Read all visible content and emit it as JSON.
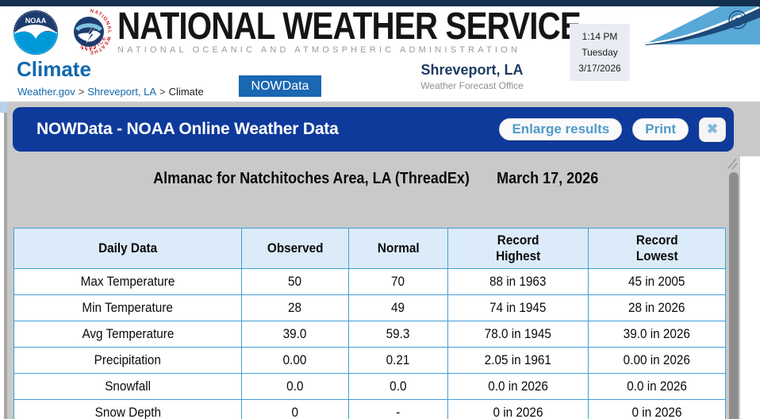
{
  "banner": {
    "title": "NATIONAL WEATHER SERVICE",
    "subtitle": "NATIONAL OCEANIC AND ATMOSPHERIC ADMINISTRATION"
  },
  "logos": {
    "noaa_text": "NOAA",
    "nws_ring_top": "NATIONAL WEATHER",
    "nws_ring_bottom": "SERVICE"
  },
  "clock": {
    "time": "1:14 PM",
    "day": "Tuesday",
    "date": "3/17/2026"
  },
  "page": {
    "section_title": "Climate",
    "breadcrumb": [
      {
        "label": "Weather.gov"
      },
      {
        "label": "Shreveport, LA"
      },
      {
        "label": "Climate"
      }
    ],
    "breadcrumb_separator": ">",
    "nowdata_button": "NOWData",
    "office": {
      "name": "Shreveport, LA",
      "type": "Weather Forecast Office"
    }
  },
  "dialog": {
    "title": "NOWData - NOAA Online Weather Data",
    "buttons": {
      "enlarge": "Enlarge results",
      "print": "Print",
      "close": "✖"
    },
    "almanac_title_line1": "Almanac for Natchitoches Area, LA (ThreadEx)",
    "almanac_title_line2": "March 17, 2026",
    "table": {
      "columns": [
        "Daily Data",
        "Observed",
        "Normal",
        "Record\nHighest",
        "Record\nLowest"
      ],
      "rows": [
        [
          "Max Temperature",
          "50",
          "70",
          "88 in 1963",
          "45 in 2005"
        ],
        [
          "Min Temperature",
          "28",
          "49",
          "74 in 1945",
          "28 in 2026"
        ],
        [
          "Avg Temperature",
          "39.0",
          "59.3",
          "78.0 in 1945",
          "39.0 in 2026"
        ],
        [
          "Precipitation",
          "0.00",
          "0.21",
          "2.05 in 1961",
          "0.00 in 2026"
        ],
        [
          "Snowfall",
          "0.0",
          "0.0",
          "0.0 in 2026",
          "0.0 in 2026"
        ],
        [
          "Snow Depth",
          "0",
          "-",
          "0 in 2026",
          "0 in 2026"
        ]
      ]
    }
  },
  "colors": {
    "top_strip": "#14304f",
    "dialog_blue": "#0e3a9c",
    "link_blue": "#1268ad",
    "launcher_blue": "#1a67b2",
    "table_border": "#41a0d5",
    "table_header_fill": "#dcebf9",
    "overlay_gray": "#c9c9c9",
    "pill_text": "#4f9bc9",
    "swoosh_light": "#58a8d8",
    "swoosh_navy": "#1c4a7a"
  }
}
